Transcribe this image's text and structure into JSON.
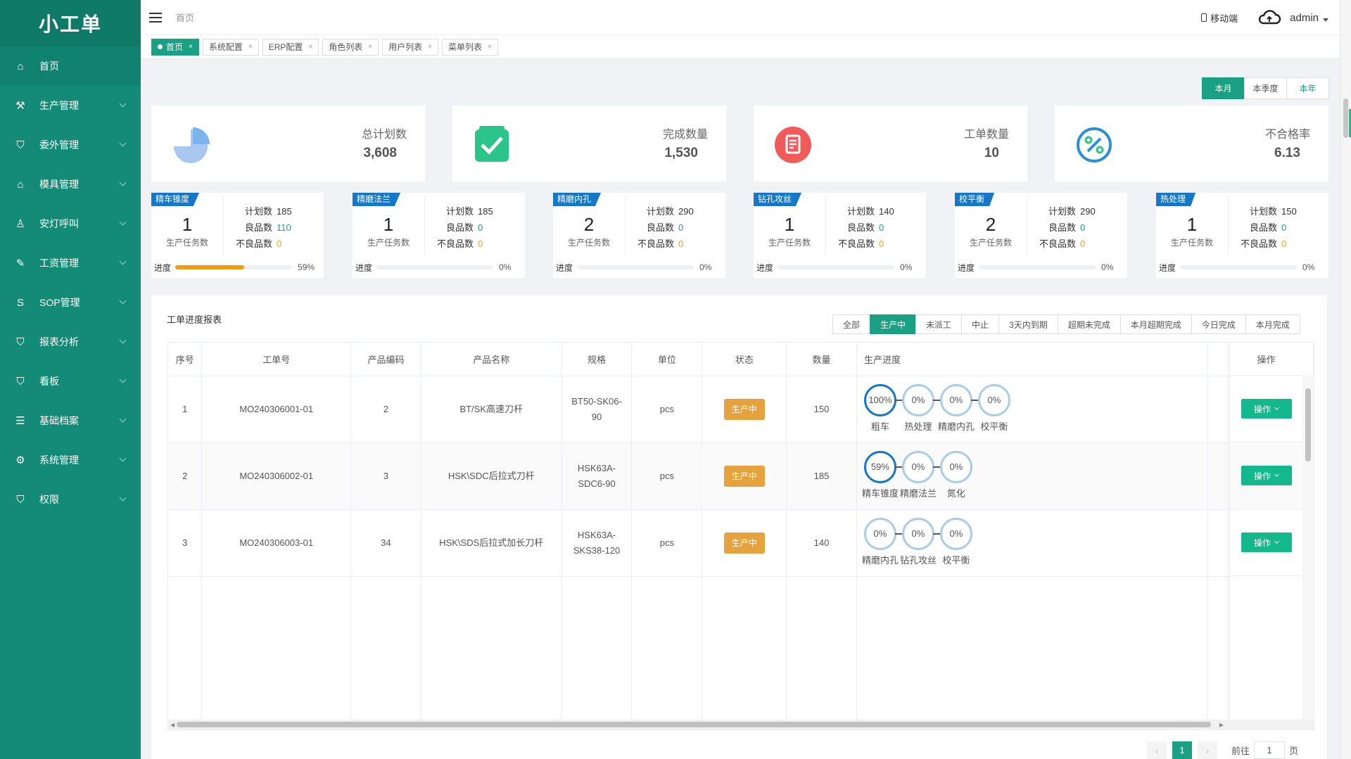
{
  "app": {
    "logo": "小工单"
  },
  "sidebar": {
    "items": [
      {
        "label": "首页",
        "icon": "home-icon"
      },
      {
        "label": "生产管理",
        "icon": "production-icon"
      },
      {
        "label": "委外管理",
        "icon": "shield-icon"
      },
      {
        "label": "模具管理",
        "icon": "mold-icon"
      },
      {
        "label": "安灯呼叫",
        "icon": "bell-icon"
      },
      {
        "label": "工资管理",
        "icon": "doc-edit-icon"
      },
      {
        "label": "SOP管理",
        "icon": "s-icon"
      },
      {
        "label": "报表分析",
        "icon": "shield-icon"
      },
      {
        "label": "看板",
        "icon": "shield-icon"
      },
      {
        "label": "基础档案",
        "icon": "list-icon"
      },
      {
        "label": "系统管理",
        "icon": "gear-icon"
      },
      {
        "label": "权限",
        "icon": "shield-icon"
      }
    ]
  },
  "header": {
    "breadcrumb": "首页",
    "mobile": "移动端",
    "user": "admin"
  },
  "tabs": [
    {
      "label": "首页",
      "close": "×"
    },
    {
      "label": "系统配置",
      "close": "×"
    },
    {
      "label": "ERP配置",
      "close": "×"
    },
    {
      "label": "角色列表",
      "close": "×"
    },
    {
      "label": "用户列表",
      "close": "×"
    },
    {
      "label": "菜单列表",
      "close": "×"
    }
  ],
  "period": [
    "本月",
    "本季度",
    "本年"
  ],
  "stats": [
    {
      "label": "总计划数",
      "value": "3,608",
      "color": "#7cb5ec"
    },
    {
      "label": "完成数量",
      "value": "1,530",
      "color": "#2bc48a"
    },
    {
      "label": "工单数量",
      "value": "10",
      "color": "#f05a5a"
    },
    {
      "label": "不合格率",
      "value": "6.13",
      "color": "#2b8fd6"
    }
  ],
  "process_labels": {
    "count_label": "生产任务数",
    "plan": "计划数",
    "good": "良品数",
    "bad": "不良品数",
    "progress": "进度"
  },
  "processes": [
    {
      "name": "精车锥度",
      "count": "1",
      "plan": "185",
      "good": "110",
      "bad": "0",
      "progress": 59,
      "progress_text": "59%"
    },
    {
      "name": "精磨法兰",
      "count": "1",
      "plan": "185",
      "good": "0",
      "bad": "0",
      "progress": 0,
      "progress_text": "0%"
    },
    {
      "name": "精磨内孔",
      "count": "2",
      "plan": "290",
      "good": "0",
      "bad": "0",
      "progress": 0,
      "progress_text": "0%"
    },
    {
      "name": "钻孔攻丝",
      "count": "1",
      "plan": "140",
      "good": "0",
      "bad": "0",
      "progress": 0,
      "progress_text": "0%"
    },
    {
      "name": "校平衡",
      "count": "2",
      "plan": "290",
      "good": "0",
      "bad": "0",
      "progress": 0,
      "progress_text": "0%"
    },
    {
      "name": "热处理",
      "count": "1",
      "plan": "150",
      "good": "0",
      "bad": "0",
      "progress": 0,
      "progress_text": "0%"
    }
  ],
  "report": {
    "title": "工单进度报表",
    "filters": [
      "全部",
      "生产中",
      "未派工",
      "中止",
      "3天内到期",
      "超期未完成",
      "本月超期完成",
      "今日完成",
      "本月完成"
    ],
    "columns": [
      "序号",
      "工单号",
      "产品编码",
      "产品名称",
      "规格",
      "单位",
      "状态",
      "数量",
      "生产进度",
      "操作"
    ],
    "rows": [
      {
        "no": "1",
        "order": "MO240306001-01",
        "code": "2",
        "name": "BT/SK高速刀杆",
        "spec": "BT50-SK06-90",
        "unit": "pcs",
        "status": "生产中",
        "qty": "150",
        "steps": [
          {
            "pct": "100%",
            "name": "粗车",
            "value": 100
          },
          {
            "pct": "0%",
            "name": "热处理",
            "value": 0
          },
          {
            "pct": "0%",
            "name": "精磨内孔",
            "value": 0
          },
          {
            "pct": "0%",
            "name": "校平衡",
            "value": 0
          }
        ],
        "op": "操作"
      },
      {
        "no": "2",
        "order": "MO240306002-01",
        "code": "3",
        "name": "HSK\\SDC后拉式刀杆",
        "spec": "HSK63A-SDC6-90",
        "unit": "pcs",
        "status": "生产中",
        "qty": "185",
        "steps": [
          {
            "pct": "59%",
            "name": "精车锥度",
            "value": 59
          },
          {
            "pct": "0%",
            "name": "精磨法兰",
            "value": 0
          },
          {
            "pct": "0%",
            "name": "氮化",
            "value": 0
          }
        ],
        "op": "操作"
      },
      {
        "no": "3",
        "order": "MO240306003-01",
        "code": "34",
        "name": "HSK\\SDS后拉式加长刀杆",
        "spec": "HSK63A-SKS38-120",
        "unit": "pcs",
        "status": "生产中",
        "qty": "140",
        "steps": [
          {
            "pct": "0%",
            "name": "精磨内孔",
            "value": 0
          },
          {
            "pct": "0%",
            "name": "钻孔攻丝",
            "value": 0
          },
          {
            "pct": "0%",
            "name": "校平衡",
            "value": 0
          }
        ],
        "op": "操作"
      }
    ]
  },
  "pager": {
    "prev": "‹",
    "page": "1",
    "next": "›",
    "goto": "前往",
    "input": "1",
    "suffix": "页"
  }
}
